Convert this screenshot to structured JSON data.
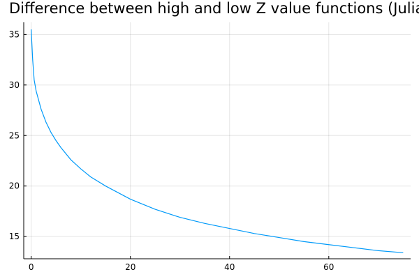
{
  "chart_data": {
    "type": "line",
    "title": "Difference between high and low Z value functions (Julia",
    "xlabel": "",
    "ylabel": "",
    "xlim": [
      -1.5,
      76.5
    ],
    "ylim": [
      12.8,
      36.2
    ],
    "x_ticks": [
      0,
      20,
      40,
      60
    ],
    "y_ticks": [
      15,
      20,
      25,
      30,
      35
    ],
    "grid": true,
    "legend": "none",
    "series": [
      {
        "color": "#009af9",
        "x": [
          0,
          0.3,
          0.6,
          1,
          1.5,
          2,
          3,
          4,
          5,
          6,
          8,
          10,
          12,
          15,
          20,
          25,
          30,
          35,
          40,
          45,
          50,
          55,
          60,
          65,
          70,
          75
        ],
        "y": [
          35.5,
          32.5,
          30.5,
          29.4,
          28.5,
          27.6,
          26.3,
          25.3,
          24.5,
          23.8,
          22.6,
          21.7,
          20.9,
          20.0,
          18.7,
          17.7,
          16.9,
          16.3,
          15.8,
          15.3,
          14.9,
          14.5,
          14.2,
          13.9,
          13.6,
          13.4
        ]
      }
    ]
  }
}
